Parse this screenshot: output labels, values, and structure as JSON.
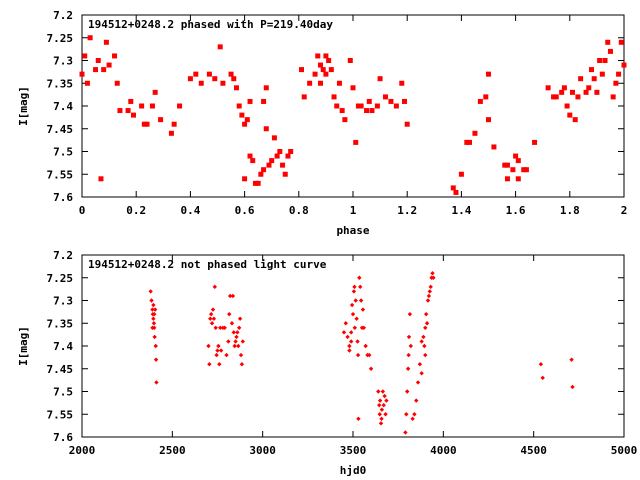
{
  "chart_data": [
    {
      "type": "scatter",
      "title": "194512+0248.2 phased with P=219.40day",
      "xlabel": "phase",
      "ylabel": "I[mag]",
      "xlim": [
        0,
        2
      ],
      "ylim": [
        7.6,
        7.2
      ],
      "y_inverted": true,
      "xticks": [
        0,
        0.2,
        0.4,
        0.6,
        0.8,
        1,
        1.2,
        1.4,
        1.6,
        1.8,
        2
      ],
      "xtick_labels": [
        "0",
        "0.2",
        "0.4",
        "0.6",
        "0.8",
        "1",
        "1.2",
        "1.4",
        "1.6",
        "1.8",
        "2"
      ],
      "yticks": [
        7.2,
        7.25,
        7.3,
        7.35,
        7.4,
        7.45,
        7.5,
        7.55,
        7.6
      ],
      "ytick_labels": [
        "7.2",
        "7.25",
        "7.3",
        "7.35",
        "7.4",
        "7.45",
        "7.5",
        "7.55",
        "7.6"
      ],
      "grid": false,
      "marker_color": "#ff0000",
      "marker": "filled-square",
      "points": [
        [
          0.0,
          7.33
        ],
        [
          0.01,
          7.29
        ],
        [
          0.02,
          7.35
        ],
        [
          0.03,
          7.25
        ],
        [
          0.05,
          7.32
        ],
        [
          0.06,
          7.3
        ],
        [
          0.07,
          7.56
        ],
        [
          0.08,
          7.32
        ],
        [
          0.09,
          7.26
        ],
        [
          0.1,
          7.31
        ],
        [
          0.12,
          7.29
        ],
        [
          0.13,
          7.35
        ],
        [
          0.14,
          7.41
        ],
        [
          0.17,
          7.41
        ],
        [
          0.18,
          7.39
        ],
        [
          0.19,
          7.42
        ],
        [
          0.22,
          7.4
        ],
        [
          0.23,
          7.44
        ],
        [
          0.24,
          7.44
        ],
        [
          0.26,
          7.4
        ],
        [
          0.27,
          7.37
        ],
        [
          0.29,
          7.43
        ],
        [
          0.33,
          7.46
        ],
        [
          0.34,
          7.44
        ],
        [
          0.36,
          7.4
        ],
        [
          0.4,
          7.34
        ],
        [
          0.42,
          7.33
        ],
        [
          0.44,
          7.35
        ],
        [
          0.47,
          7.33
        ],
        [
          0.49,
          7.34
        ],
        [
          0.51,
          7.27
        ],
        [
          0.52,
          7.35
        ],
        [
          0.55,
          7.33
        ],
        [
          0.56,
          7.34
        ],
        [
          0.57,
          7.36
        ],
        [
          0.58,
          7.4
        ],
        [
          0.59,
          7.42
        ],
        [
          0.6,
          7.44
        ],
        [
          0.6,
          7.56
        ],
        [
          0.61,
          7.43
        ],
        [
          0.62,
          7.39
        ],
        [
          0.62,
          7.51
        ],
        [
          0.63,
          7.52
        ],
        [
          0.64,
          7.57
        ],
        [
          0.65,
          7.57
        ],
        [
          0.66,
          7.55
        ],
        [
          0.67,
          7.39
        ],
        [
          0.67,
          7.54
        ],
        [
          0.68,
          7.36
        ],
        [
          0.68,
          7.45
        ],
        [
          0.69,
          7.53
        ],
        [
          0.7,
          7.52
        ],
        [
          0.71,
          7.47
        ],
        [
          0.72,
          7.51
        ],
        [
          0.73,
          7.5
        ],
        [
          0.74,
          7.53
        ],
        [
          0.75,
          7.55
        ],
        [
          0.76,
          7.51
        ],
        [
          0.77,
          7.5
        ],
        [
          0.81,
          7.32
        ],
        [
          0.82,
          7.38
        ],
        [
          0.84,
          7.35
        ],
        [
          0.86,
          7.33
        ],
        [
          0.87,
          7.29
        ],
        [
          0.88,
          7.31
        ],
        [
          0.88,
          7.35
        ],
        [
          0.89,
          7.32
        ],
        [
          0.9,
          7.29
        ],
        [
          0.9,
          7.33
        ],
        [
          0.91,
          7.3
        ],
        [
          0.92,
          7.32
        ],
        [
          0.93,
          7.38
        ],
        [
          0.94,
          7.4
        ],
        [
          0.95,
          7.35
        ],
        [
          0.96,
          7.41
        ],
        [
          0.97,
          7.43
        ],
        [
          0.99,
          7.3
        ],
        [
          1.0,
          7.36
        ],
        [
          1.01,
          7.48
        ],
        [
          1.02,
          7.4
        ],
        [
          1.03,
          7.4
        ],
        [
          1.05,
          7.41
        ],
        [
          1.06,
          7.39
        ],
        [
          1.07,
          7.41
        ],
        [
          1.09,
          7.4
        ],
        [
          1.1,
          7.34
        ],
        [
          1.12,
          7.38
        ],
        [
          1.14,
          7.39
        ],
        [
          1.16,
          7.4
        ],
        [
          1.18,
          7.35
        ],
        [
          1.19,
          7.39
        ],
        [
          1.2,
          7.44
        ],
        [
          1.37,
          7.58
        ],
        [
          1.38,
          7.59
        ],
        [
          1.4,
          7.55
        ],
        [
          1.42,
          7.48
        ],
        [
          1.43,
          7.48
        ],
        [
          1.45,
          7.46
        ],
        [
          1.47,
          7.39
        ],
        [
          1.49,
          7.38
        ],
        [
          1.5,
          7.43
        ],
        [
          1.5,
          7.33
        ],
        [
          1.52,
          7.49
        ],
        [
          1.56,
          7.53
        ],
        [
          1.57,
          7.53
        ],
        [
          1.57,
          7.56
        ],
        [
          1.59,
          7.54
        ],
        [
          1.6,
          7.51
        ],
        [
          1.61,
          7.52
        ],
        [
          1.61,
          7.56
        ],
        [
          1.63,
          7.54
        ],
        [
          1.64,
          7.54
        ],
        [
          1.67,
          7.48
        ],
        [
          1.72,
          7.36
        ],
        [
          1.74,
          7.38
        ],
        [
          1.75,
          7.38
        ],
        [
          1.77,
          7.37
        ],
        [
          1.78,
          7.36
        ],
        [
          1.79,
          7.4
        ],
        [
          1.8,
          7.42
        ],
        [
          1.81,
          7.37
        ],
        [
          1.82,
          7.43
        ],
        [
          1.83,
          7.38
        ],
        [
          1.84,
          7.34
        ],
        [
          1.86,
          7.37
        ],
        [
          1.87,
          7.36
        ],
        [
          1.88,
          7.32
        ],
        [
          1.89,
          7.34
        ],
        [
          1.9,
          7.37
        ],
        [
          1.91,
          7.3
        ],
        [
          1.92,
          7.33
        ],
        [
          1.93,
          7.3
        ],
        [
          1.94,
          7.26
        ],
        [
          1.95,
          7.28
        ],
        [
          1.96,
          7.38
        ],
        [
          1.97,
          7.35
        ],
        [
          1.98,
          7.33
        ],
        [
          1.99,
          7.26
        ],
        [
          2.0,
          7.31
        ]
      ]
    },
    {
      "type": "scatter",
      "title": "194512+0248.2 not phased light curve",
      "xlabel": "hjd0",
      "ylabel": "I[mag]",
      "xlim": [
        2000,
        5000
      ],
      "ylim": [
        7.6,
        7.2
      ],
      "y_inverted": true,
      "xticks": [
        2000,
        2500,
        3000,
        3500,
        4000,
        4500,
        5000
      ],
      "xtick_labels": [
        "2000",
        "2500",
        "3000",
        "3500",
        "4000",
        "4500",
        "5000"
      ],
      "yticks": [
        7.2,
        7.25,
        7.3,
        7.35,
        7.4,
        7.45,
        7.5,
        7.55,
        7.6
      ],
      "ytick_labels": [
        "7.2",
        "7.25",
        "7.3",
        "7.35",
        "7.4",
        "7.45",
        "7.5",
        "7.55",
        "7.6"
      ],
      "grid": false,
      "marker_color": "#ff0000",
      "marker": "small-diamond",
      "points": [
        [
          2380,
          7.28
        ],
        [
          2385,
          7.3
        ],
        [
          2390,
          7.32
        ],
        [
          2392,
          7.33
        ],
        [
          2395,
          7.34
        ],
        [
          2398,
          7.35
        ],
        [
          2400,
          7.36
        ],
        [
          2402,
          7.38
        ],
        [
          2405,
          7.32
        ],
        [
          2408,
          7.4
        ],
        [
          2410,
          7.43
        ],
        [
          2412,
          7.48
        ],
        [
          2390,
          7.36
        ],
        [
          2395,
          7.31
        ],
        [
          2400,
          7.33
        ],
        [
          2700,
          7.4
        ],
        [
          2705,
          7.44
        ],
        [
          2710,
          7.34
        ],
        [
          2715,
          7.33
        ],
        [
          2720,
          7.35
        ],
        [
          2725,
          7.32
        ],
        [
          2730,
          7.34
        ],
        [
          2735,
          7.27
        ],
        [
          2740,
          7.36
        ],
        [
          2745,
          7.42
        ],
        [
          2750,
          7.41
        ],
        [
          2755,
          7.4
        ],
        [
          2760,
          7.44
        ],
        [
          2765,
          7.36
        ],
        [
          2770,
          7.41
        ],
        [
          2780,
          7.36
        ],
        [
          2790,
          7.36
        ],
        [
          2800,
          7.42
        ],
        [
          2810,
          7.39
        ],
        [
          2815,
          7.33
        ],
        [
          2820,
          7.29
        ],
        [
          2830,
          7.35
        ],
        [
          2835,
          7.29
        ],
        [
          2840,
          7.37
        ],
        [
          2845,
          7.4
        ],
        [
          2850,
          7.39
        ],
        [
          2855,
          7.38
        ],
        [
          2860,
          7.37
        ],
        [
          2865,
          7.4
        ],
        [
          2870,
          7.36
        ],
        [
          2875,
          7.34
        ],
        [
          2880,
          7.42
        ],
        [
          2885,
          7.44
        ],
        [
          2890,
          7.39
        ],
        [
          3450,
          7.37
        ],
        [
          3460,
          7.35
        ],
        [
          3470,
          7.38
        ],
        [
          3480,
          7.4
        ],
        [
          3490,
          7.37
        ],
        [
          3495,
          7.31
        ],
        [
          3500,
          7.33
        ],
        [
          3505,
          7.28
        ],
        [
          3508,
          7.27
        ],
        [
          3510,
          7.36
        ],
        [
          3515,
          7.3
        ],
        [
          3520,
          7.34
        ],
        [
          3525,
          7.39
        ],
        [
          3528,
          7.42
        ],
        [
          3530,
          7.56
        ],
        [
          3535,
          7.25
        ],
        [
          3540,
          7.27
        ],
        [
          3545,
          7.3
        ],
        [
          3550,
          7.36
        ],
        [
          3555,
          7.32
        ],
        [
          3560,
          7.36
        ],
        [
          3570,
          7.4
        ],
        [
          3580,
          7.42
        ],
        [
          3590,
          7.42
        ],
        [
          3600,
          7.45
        ],
        [
          3480,
          7.41
        ],
        [
          3490,
          7.39
        ],
        [
          3640,
          7.5
        ],
        [
          3645,
          7.53
        ],
        [
          3648,
          7.55
        ],
        [
          3650,
          7.52
        ],
        [
          3655,
          7.57
        ],
        [
          3658,
          7.56
        ],
        [
          3660,
          7.54
        ],
        [
          3665,
          7.5
        ],
        [
          3670,
          7.53
        ],
        [
          3675,
          7.51
        ],
        [
          3680,
          7.55
        ],
        [
          3685,
          7.52
        ],
        [
          3790,
          7.59
        ],
        [
          3795,
          7.55
        ],
        [
          3800,
          7.5
        ],
        [
          3805,
          7.45
        ],
        [
          3808,
          7.42
        ],
        [
          3810,
          7.38
        ],
        [
          3815,
          7.33
        ],
        [
          3820,
          7.4
        ],
        [
          3830,
          7.56
        ],
        [
          3840,
          7.55
        ],
        [
          3850,
          7.52
        ],
        [
          3860,
          7.48
        ],
        [
          3870,
          7.44
        ],
        [
          3880,
          7.46
        ],
        [
          3890,
          7.38
        ],
        [
          3895,
          7.4
        ],
        [
          3900,
          7.36
        ],
        [
          3905,
          7.33
        ],
        [
          3910,
          7.35
        ],
        [
          3915,
          7.3
        ],
        [
          3920,
          7.29
        ],
        [
          3925,
          7.28
        ],
        [
          3930,
          7.27
        ],
        [
          3935,
          7.25
        ],
        [
          3940,
          7.24
        ],
        [
          3945,
          7.25
        ],
        [
          3880,
          7.39
        ],
        [
          3900,
          7.42
        ],
        [
          4540,
          7.44
        ],
        [
          4550,
          7.47
        ],
        [
          4710,
          7.43
        ],
        [
          4715,
          7.49
        ]
      ]
    }
  ]
}
